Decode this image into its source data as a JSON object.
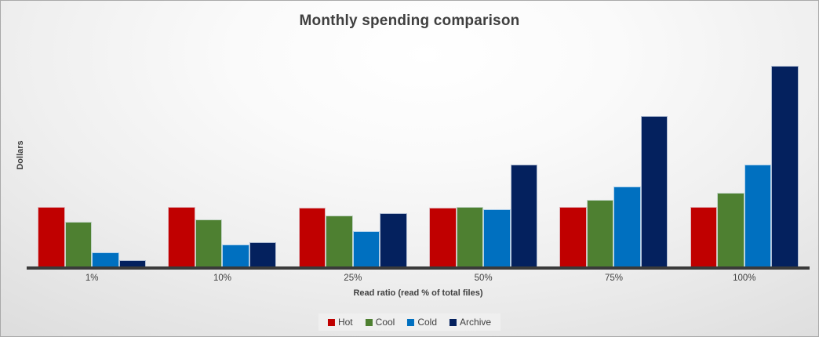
{
  "chart_data": {
    "type": "bar",
    "title": "Monthly spending comparison",
    "xlabel": "Read ratio (read % of total files)",
    "ylabel": "Dollars",
    "categories": [
      "1%",
      "10%",
      "25%",
      "50%",
      "75%",
      "100%"
    ],
    "series": [
      {
        "name": "Hot",
        "color": "#c00000",
        "values": [
          77,
          77,
          76,
          76,
          77,
          77
        ]
      },
      {
        "name": "Cool",
        "color": "#4e8031",
        "values": [
          58,
          61,
          66,
          77,
          86,
          95
        ]
      },
      {
        "name": "Cold",
        "color": "#0070c0",
        "values": [
          19,
          29,
          46,
          74,
          103,
          131
        ]
      },
      {
        "name": "Archive",
        "color": "#04215e",
        "values": [
          9,
          32,
          69,
          131,
          193,
          257
        ]
      }
    ],
    "ylim": [
      0,
      270
    ],
    "y_tick_labels_visible": false,
    "grid": false,
    "legend_position": "bottom",
    "values_note": "relative units estimated from bar heights; chart shows no y-axis tick values"
  },
  "colors": {
    "title_text": "#3f3f3f",
    "axis_text": "#404040",
    "axis_line": "#3a3a3a",
    "legend_background": "#efefef",
    "background_center": "#ffffff",
    "background_edge": "#c7c7c7"
  }
}
